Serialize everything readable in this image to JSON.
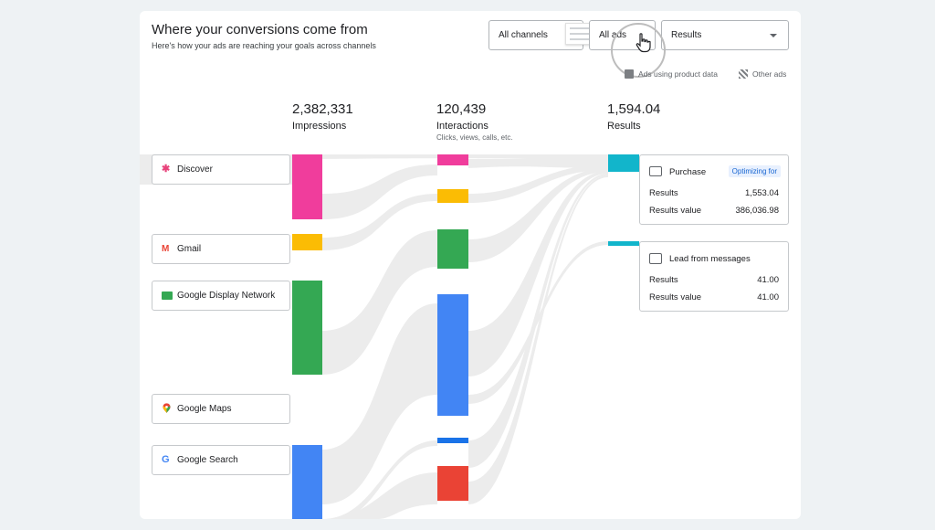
{
  "header": {
    "title": "Where your conversions come from",
    "subtitle": "Here's how your ads are reaching your goals across channels"
  },
  "filters": {
    "channels": "All channels",
    "ads": "All ads",
    "metric": "Results"
  },
  "legend": {
    "product_data": "Ads using product data",
    "other_ads": "Other ads"
  },
  "stats": {
    "impressions_value": "2,382,331",
    "impressions_label": "Impressions",
    "interactions_value": "120,439",
    "interactions_label": "Interactions",
    "interactions_sub": "Clicks, views, calls, etc.",
    "results_value": "1,594.04",
    "results_label": "Results"
  },
  "channels": [
    {
      "label": "Discover",
      "icon": "discover-icon",
      "color": "#e8437b"
    },
    {
      "label": "Gmail",
      "icon": "gmail-icon",
      "color": "#ea4335"
    },
    {
      "label": "Google Display Network",
      "icon": "display-network-icon",
      "color": "#34a853"
    },
    {
      "label": "Google Maps",
      "icon": "maps-pin-icon",
      "color": "#4285f4"
    },
    {
      "label": "Google Search",
      "icon": "google-g-icon",
      "color": "#4285f4"
    }
  ],
  "results": [
    {
      "name": "Purchase",
      "badge": "Optimizing for",
      "results_label": "Results",
      "results": "1,553.04",
      "value_label": "Results value",
      "value": "386,036.98"
    },
    {
      "name": "Lead from messages",
      "results_label": "Results",
      "results": "41.00",
      "value_label": "Results value",
      "value": "41.00"
    }
  ],
  "colors": {
    "discover": "#f03d9c",
    "gmail": "#fbbc04",
    "display": "#34a853",
    "search": "#4285f4",
    "red": "#ea4335",
    "results": "#12b5cb",
    "flow": "#ececec"
  }
}
